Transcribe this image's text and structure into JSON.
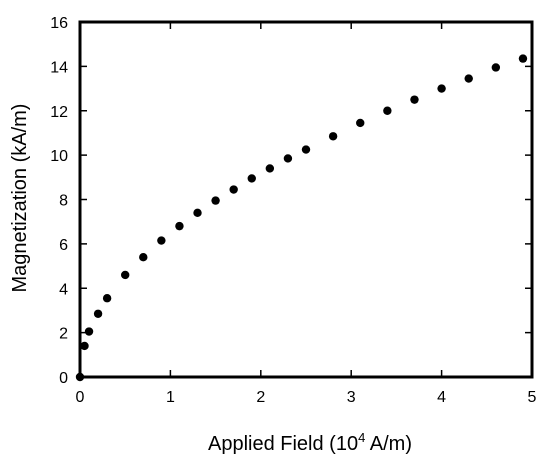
{
  "chart_data": {
    "type": "scatter",
    "title": "",
    "xlabel_pre": "Applied Field (10",
    "xlabel_sup": "4",
    "xlabel_post": " A/m)",
    "ylabel": "Magnetization (kA/m)",
    "xlim": [
      0,
      5
    ],
    "ylim": [
      0,
      16
    ],
    "x_ticks": [
      "0",
      "1",
      "2",
      "3",
      "4",
      "5"
    ],
    "y_ticks": [
      "0",
      "2",
      "4",
      "6",
      "8",
      "10",
      "12",
      "14",
      "16"
    ],
    "grid": false,
    "marker_color": "#000000",
    "series": [
      {
        "x": [
          0.0,
          0.05,
          0.1,
          0.2,
          0.3,
          0.5,
          0.7,
          0.9,
          1.1,
          1.3,
          1.5,
          1.7,
          1.9,
          2.1,
          2.3,
          2.5,
          2.8,
          3.1,
          3.4,
          3.7,
          4.0,
          4.3,
          4.6,
          4.9
        ],
        "y": [
          0.0,
          1.4,
          2.05,
          2.85,
          3.55,
          4.6,
          5.4,
          6.15,
          6.8,
          7.4,
          7.95,
          8.45,
          8.95,
          9.4,
          9.85,
          10.25,
          10.85,
          11.45,
          12.0,
          12.5,
          13.0,
          13.45,
          13.95,
          14.35
        ]
      }
    ]
  }
}
